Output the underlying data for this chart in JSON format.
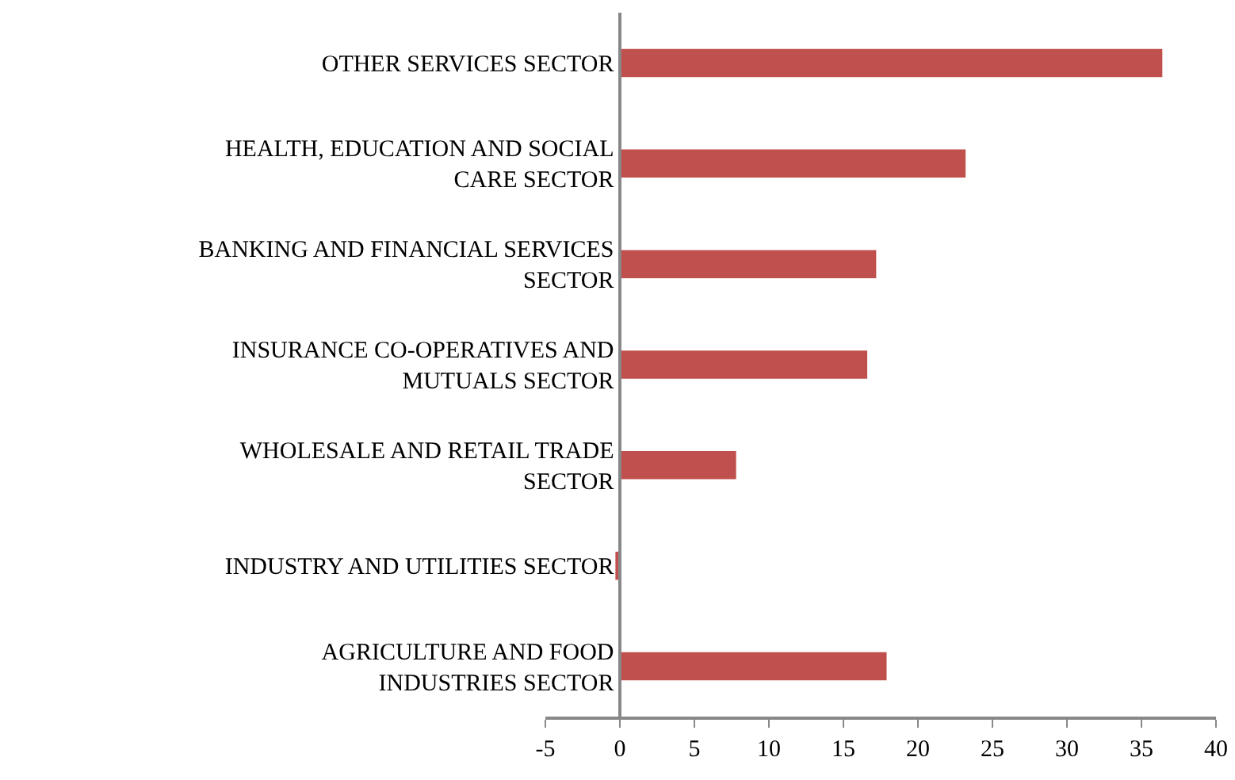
{
  "chart_data": {
    "type": "bar",
    "orientation": "horizontal",
    "categories": [
      "OTHER SERVICES SECTOR",
      "HEALTH, EDUCATION AND SOCIAL CARE SECTOR",
      "BANKING AND FINANCIAL SERVICES SECTOR",
      "INSURANCE CO-OPERATIVES AND MUTUALS SECTOR",
      "WHOLESALE AND RETAIL TRADE SECTOR",
      "INDUSTRY AND UTILITIES SECTOR",
      "AGRICULTURE AND FOOD INDUSTRIES SECTOR"
    ],
    "values": [
      36.4,
      23.2,
      17.2,
      16.6,
      7.8,
      -0.3,
      17.9
    ],
    "color": "#c0504d",
    "xlim": [
      -5,
      40
    ],
    "xticks": [
      -5,
      0,
      5,
      10,
      15,
      20,
      25,
      30,
      35,
      40
    ],
    "grid": false,
    "legend": false
  }
}
